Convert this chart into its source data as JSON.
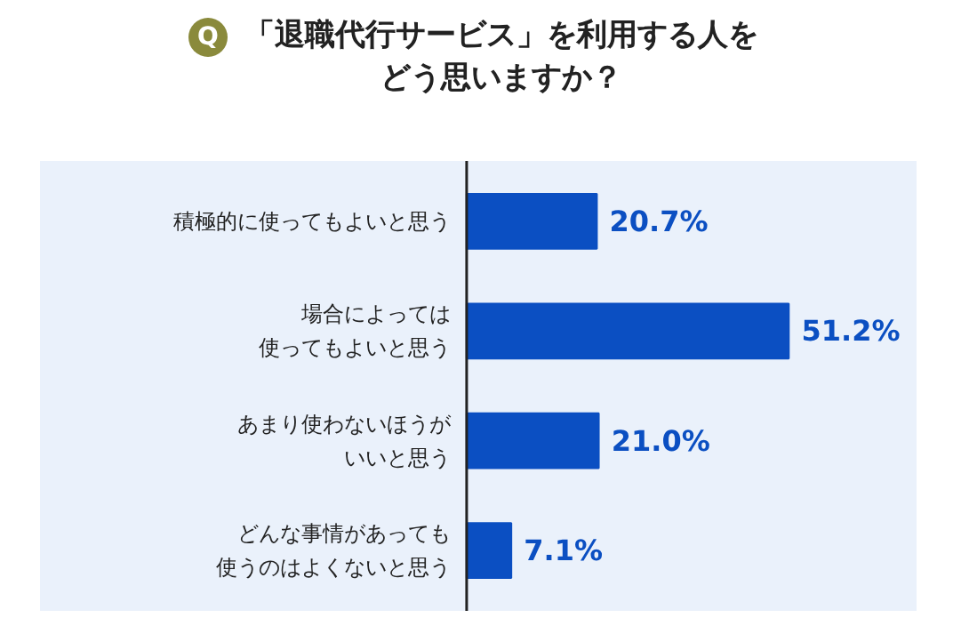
{
  "chart_data": {
    "type": "bar",
    "orientation": "horizontal",
    "title": "「退職代行サービス」を利用する人をどう思いますか？",
    "annotations": [
      "Q"
    ],
    "categories": [
      "積極的に使ってもよいと思う",
      "場合によっては使ってもよいと思う",
      "あまり使わないほうがいいと思う",
      "どんな事情があっても使うのはよくないと思う"
    ],
    "values": [
      20.7,
      51.2,
      21.0,
      7.1
    ],
    "value_labels": [
      "20.7%",
      "51.2%",
      "21.0%",
      "7.1%"
    ],
    "color": "#0b4fc2"
  }
}
